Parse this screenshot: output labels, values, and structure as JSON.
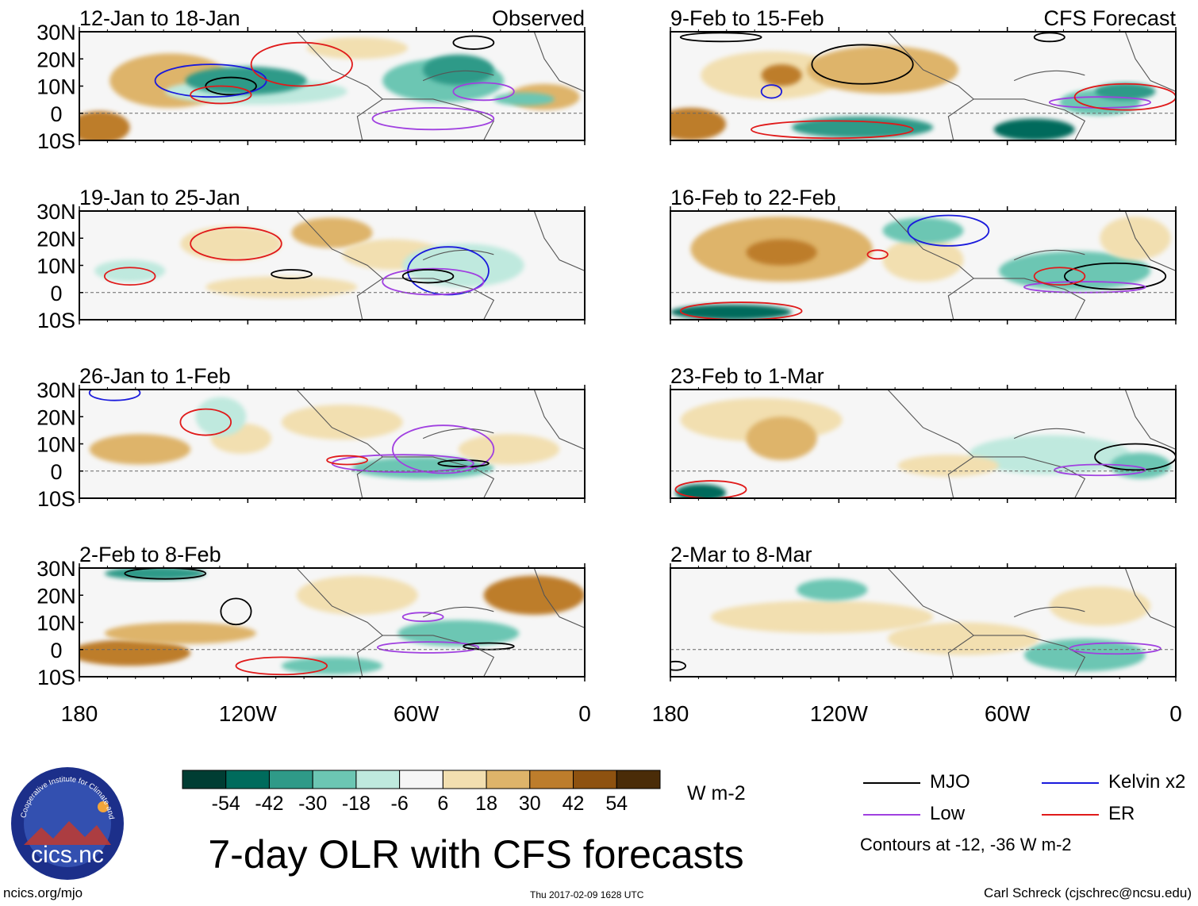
{
  "chart_data": {
    "type": "heatmap",
    "title": "7-day OLR with CFS forecasts",
    "variable": "OLR anomaly",
    "units": "W m-2",
    "columns": [
      {
        "header": "Observed",
        "panels": [
          "12-Jan to 18-Jan",
          "19-Jan to 25-Jan",
          "26-Jan to 1-Feb",
          "2-Feb to 8-Feb"
        ]
      },
      {
        "header": "CFS Forecast",
        "panels": [
          "9-Feb to 15-Feb",
          "16-Feb to 22-Feb",
          "23-Feb to 1-Mar",
          "2-Mar to 8-Mar"
        ]
      }
    ],
    "x_axis": {
      "ticks": [
        "180",
        "120W",
        "60W",
        "0"
      ],
      "tick_values": [
        -180,
        -120,
        -60,
        0
      ],
      "range": [
        -180,
        0
      ]
    },
    "y_axis": {
      "ticks": [
        "30N",
        "20N",
        "10N",
        "0",
        "10S"
      ],
      "tick_values": [
        30,
        20,
        10,
        0,
        -10
      ],
      "range": [
        -10,
        30
      ]
    },
    "colorbar": {
      "levels": [
        "-54",
        "-42",
        "-30",
        "-18",
        "-6",
        "6",
        "18",
        "30",
        "42",
        "54"
      ],
      "colors": [
        "#003d33",
        "#006b5c",
        "#2f9a88",
        "#6cc6b3",
        "#bfe9de",
        "#f6f6f6",
        "#f2dfb0",
        "#deb46a",
        "#bd7d2c",
        "#8e5210",
        "#4a2c08"
      ]
    },
    "legend": [
      {
        "label": "MJO",
        "color": "#000000"
      },
      {
        "label": "Kelvin x2",
        "color": "#1a1adc"
      },
      {
        "label": "Low",
        "color": "#a040e0"
      },
      {
        "label": "ER",
        "color": "#e01a1a"
      }
    ],
    "contours_note": "Contours at -12, -36 W m-2"
  },
  "footer": {
    "left": "ncics.org/mjo",
    "center": "Thu 2017-02-09 1628 UTC",
    "right": "Carl Schreck (cjschrec@ncsu.edu)"
  },
  "logo": {
    "text": "cics.nc",
    "ring_text": "Cooperative Institute for Climate and Satellites"
  },
  "colors": {
    "land": "#555555",
    "mjo": "#000000",
    "kelvin": "#1a1adc",
    "low": "#a040e0",
    "er": "#e01a1a"
  }
}
